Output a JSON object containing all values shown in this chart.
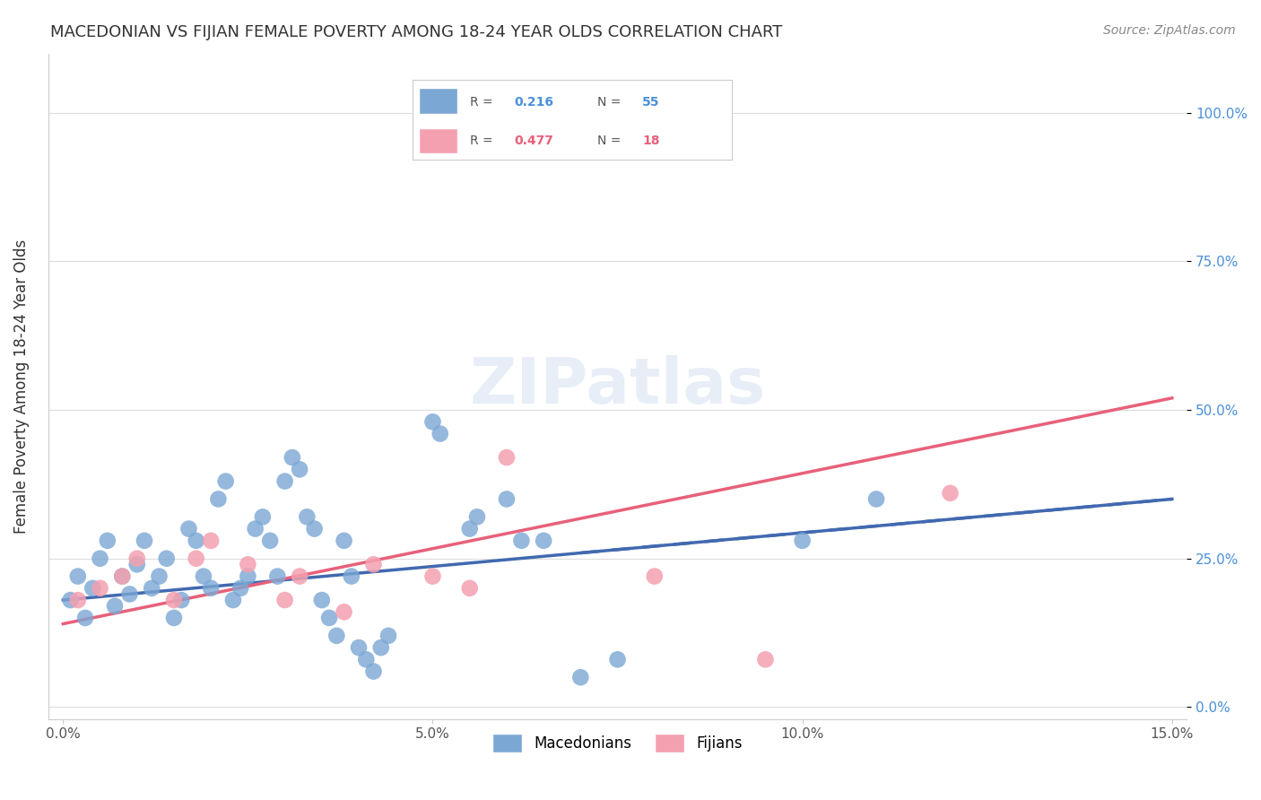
{
  "title": "MACEDONIAN VS FIJIAN FEMALE POVERTY AMONG 18-24 YEAR OLDS CORRELATION CHART",
  "source": "Source: ZipAtlas.com",
  "xlabel": "",
  "ylabel": "Female Poverty Among 18-24 Year Olds",
  "xlim": [
    0,
    0.15
  ],
  "ylim": [
    -0.02,
    1.1
  ],
  "xticks": [
    0.0,
    0.05,
    0.1,
    0.15
  ],
  "xticklabels": [
    "0.0%",
    "5.0%",
    "10.0%",
    "15.0%"
  ],
  "yticks": [
    0.0,
    0.25,
    0.5,
    0.75,
    1.0
  ],
  "yticklabels": [
    "0.0%",
    "25.0%",
    "50.0%",
    "75.0%",
    "100.0%"
  ],
  "macedonian_color": "#7ba7d4",
  "fijian_color": "#f4a0b0",
  "macedonian_line_color": "#4169b0",
  "fijian_line_color": "#e8607a",
  "macedonian_R": 0.216,
  "macedonian_N": 55,
  "fijian_R": 0.477,
  "fijian_N": 18,
  "grid_color": "#dddddd",
  "watermark": "ZIPatlas",
  "legend_macedonians": "Macedonians",
  "legend_fijians": "Fijians",
  "macedonian_x": [
    0.001,
    0.002,
    0.003,
    0.004,
    0.005,
    0.006,
    0.007,
    0.008,
    0.009,
    0.01,
    0.011,
    0.012,
    0.013,
    0.014,
    0.015,
    0.016,
    0.017,
    0.018,
    0.019,
    0.02,
    0.021,
    0.022,
    0.023,
    0.024,
    0.025,
    0.026,
    0.027,
    0.028,
    0.029,
    0.03,
    0.031,
    0.032,
    0.033,
    0.034,
    0.035,
    0.036,
    0.037,
    0.038,
    0.039,
    0.04,
    0.041,
    0.042,
    0.043,
    0.044,
    0.05,
    0.051,
    0.055,
    0.056,
    0.06,
    0.062,
    0.065,
    0.07,
    0.075,
    0.1,
    0.11
  ],
  "macedonian_y": [
    0.18,
    0.22,
    0.15,
    0.2,
    0.25,
    0.28,
    0.17,
    0.22,
    0.19,
    0.24,
    0.28,
    0.2,
    0.22,
    0.25,
    0.15,
    0.18,
    0.3,
    0.28,
    0.22,
    0.2,
    0.35,
    0.38,
    0.18,
    0.2,
    0.22,
    0.3,
    0.32,
    0.28,
    0.22,
    0.38,
    0.42,
    0.4,
    0.32,
    0.3,
    0.18,
    0.15,
    0.12,
    0.28,
    0.22,
    0.1,
    0.08,
    0.06,
    0.1,
    0.12,
    0.48,
    0.46,
    0.3,
    0.32,
    0.35,
    0.28,
    0.28,
    0.05,
    0.08,
    0.28,
    0.35
  ],
  "fijian_x": [
    0.002,
    0.005,
    0.008,
    0.01,
    0.015,
    0.018,
    0.02,
    0.025,
    0.03,
    0.032,
    0.038,
    0.042,
    0.05,
    0.055,
    0.06,
    0.08,
    0.095,
    0.12
  ],
  "fijian_y": [
    0.18,
    0.2,
    0.22,
    0.25,
    0.18,
    0.25,
    0.28,
    0.24,
    0.18,
    0.22,
    0.16,
    0.24,
    0.22,
    0.2,
    0.42,
    0.22,
    0.08,
    0.36
  ],
  "macedonian_trend_x0": 0.0,
  "macedonian_trend_x1": 0.15,
  "macedonian_trend_y0": 0.18,
  "macedonian_trend_y1": 0.35,
  "fijian_trend_x0": 0.0,
  "fijian_trend_x1": 0.15,
  "fijian_trend_y0": 0.14,
  "fijian_trend_y1": 0.52
}
